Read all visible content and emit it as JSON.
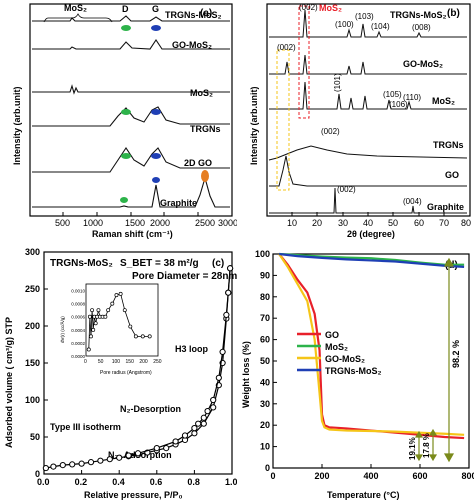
{
  "chart_data": [
    {
      "type": "line",
      "panel_tag": "(a)",
      "xlabel": "Raman shift (cm⁻¹)",
      "ylabel": "Intensity (arb.unit)",
      "xlim": [
        0,
        3000
      ],
      "xticks": [
        "500",
        "1000",
        "1500",
        "2000",
        "2500",
        "3000"
      ],
      "series": [
        {
          "name": "TRGNs-MoS₂"
        },
        {
          "name": "GO-MoS₂"
        },
        {
          "name": "MoS₂"
        },
        {
          "name": "TRGNs"
        },
        {
          "name": "2D GO"
        },
        {
          "name": "Graphite"
        }
      ],
      "annotations": [
        "MoS₂",
        "D",
        "G"
      ]
    },
    {
      "type": "line",
      "panel_tag": "(b)",
      "xlabel": "2θ (degree)",
      "ylabel": "Intensity (arb.unit)",
      "xlim": [
        0,
        80
      ],
      "xticks": [
        "10",
        "20",
        "30",
        "40",
        "50",
        "60",
        "70",
        "80"
      ],
      "series": [
        {
          "name": "TRGNs-MoS₂"
        },
        {
          "name": "GO-MoS₂"
        },
        {
          "name": "MoS₂"
        },
        {
          "name": "TRGNs"
        },
        {
          "name": "GO"
        },
        {
          "name": "Graphite"
        }
      ],
      "peak_labels": [
        "(002)",
        "(100)",
        "(103)",
        "(104)",
        "(008)",
        "(002)",
        "(101)",
        "(105)",
        "(106)",
        "(110)",
        "(002)",
        "(002)",
        "(004)"
      ],
      "highlight_label": "MoS₂"
    },
    {
      "type": "line",
      "panel_tag": "(c)",
      "title": "TRGNs-MoS₂",
      "xlabel": "Relative pressure, P/P₀",
      "ylabel": "Adsorbed volume ( cm³/g) STP",
      "xlim": [
        0.0,
        1.0
      ],
      "ylim": [
        0,
        300
      ],
      "xticks": [
        "0.0",
        "0.2",
        "0.4",
        "0.6",
        "0.8",
        "1.0"
      ],
      "yticks": [
        "0",
        "50",
        "100",
        "150",
        "200",
        "250",
        "300"
      ],
      "annotations": [
        "S_BET = 38 m²/g",
        "Pore Diameter = 28nm",
        "H3 loop",
        "N₂-Desorption",
        "Type III isotherm",
        "N₂- Adsorption"
      ],
      "series": [
        {
          "name": "adsorption",
          "x": [
            0.01,
            0.05,
            0.1,
            0.15,
            0.2,
            0.25,
            0.3,
            0.35,
            0.4,
            0.45,
            0.5,
            0.55,
            0.6,
            0.65,
            0.7,
            0.75,
            0.8,
            0.85,
            0.9,
            0.93,
            0.95,
            0.97,
            0.98,
            0.99
          ],
          "y": [
            8,
            10,
            12,
            13,
            14,
            16,
            18,
            20,
            22,
            24,
            26,
            29,
            32,
            35,
            40,
            46,
            55,
            68,
            90,
            120,
            150,
            210,
            245,
            278
          ]
        },
        {
          "name": "desorption",
          "x": [
            0.99,
            0.98,
            0.97,
            0.95,
            0.93,
            0.9,
            0.87,
            0.85,
            0.82,
            0.8,
            0.75,
            0.7,
            0.6,
            0.5,
            0.45
          ],
          "y": [
            278,
            245,
            215,
            165,
            130,
            100,
            85,
            76,
            68,
            62,
            52,
            44,
            35,
            28,
            25
          ]
        }
      ],
      "inset": {
        "xlabel": "Pore radius (Angstrom)",
        "ylabel": "dV(r) (cc/Å/g)",
        "xticks": [
          "0",
          "50",
          "100",
          "150",
          "200",
          "250"
        ],
        "yticks": [
          "0.0000",
          "0.0002",
          "0.0004",
          "0.0006",
          "0.0008",
          "0.0010"
        ],
        "xlim": [
          0,
          260
        ],
        "ylim": [
          0,
          0.0011
        ],
        "x": [
          10,
          14,
          18,
          22,
          26,
          30,
          35,
          40,
          45,
          50,
          60,
          70,
          80,
          95,
          110,
          125,
          140,
          160,
          180,
          205,
          230
        ],
        "y": [
          0.0001,
          0.0006,
          0.0003,
          0.0007,
          0.0004,
          0.0006,
          0.0005,
          0.0006,
          0.0007,
          0.0006,
          0.0006,
          0.0006,
          0.0007,
          0.0008,
          0.00093,
          0.00095,
          0.0007,
          0.00045,
          0.0003,
          0.0003,
          0.0003
        ]
      }
    },
    {
      "type": "line",
      "panel_tag": "(d)",
      "xlabel": "Temperature (°C)",
      "ylabel": "Weight loss (%)",
      "xlim": [
        0,
        800
      ],
      "ylim": [
        0,
        100
      ],
      "xticks": [
        "0",
        "200",
        "400",
        "600",
        "800"
      ],
      "yticks": [
        "0",
        "10",
        "20",
        "30",
        "40",
        "50",
        "60",
        "70",
        "80",
        "90",
        "100"
      ],
      "annotations": [
        "98.2 %",
        "19.1%",
        "17.8 %"
      ],
      "series": [
        {
          "name": "GO",
          "color": "#e8202a",
          "x": [
            25,
            60,
            100,
            140,
            170,
            190,
            200,
            210,
            230,
            300,
            400,
            500,
            600,
            700,
            780
          ],
          "y": [
            100,
            95,
            88,
            82,
            72,
            55,
            25,
            20,
            19,
            18.5,
            17.5,
            16.5,
            15.5,
            14.5,
            14
          ]
        },
        {
          "name": "MoS₂",
          "color": "#2db34a",
          "x": [
            25,
            100,
            200,
            300,
            400,
            500,
            600,
            700,
            780
          ],
          "y": [
            100,
            99.5,
            98.8,
            98.3,
            98,
            97.2,
            96,
            95,
            95
          ]
        },
        {
          "name": "GO-MoS₂",
          "color": "#f5c518",
          "x": [
            25,
            60,
            100,
            140,
            170,
            190,
            200,
            210,
            230,
            300,
            400,
            500,
            600,
            700,
            780
          ],
          "y": [
            100,
            94,
            86,
            78,
            60,
            35,
            22,
            19,
            18,
            17.5,
            17.3,
            17,
            16.5,
            16,
            15.5
          ]
        },
        {
          "name": "TRGNs-MoS₂",
          "color": "#1f3fb5",
          "x": [
            25,
            100,
            200,
            300,
            400,
            500,
            600,
            700,
            780
          ],
          "y": [
            100,
            99,
            98.2,
            97.5,
            97,
            96.5,
            95.5,
            94.5,
            94
          ]
        }
      ]
    }
  ]
}
